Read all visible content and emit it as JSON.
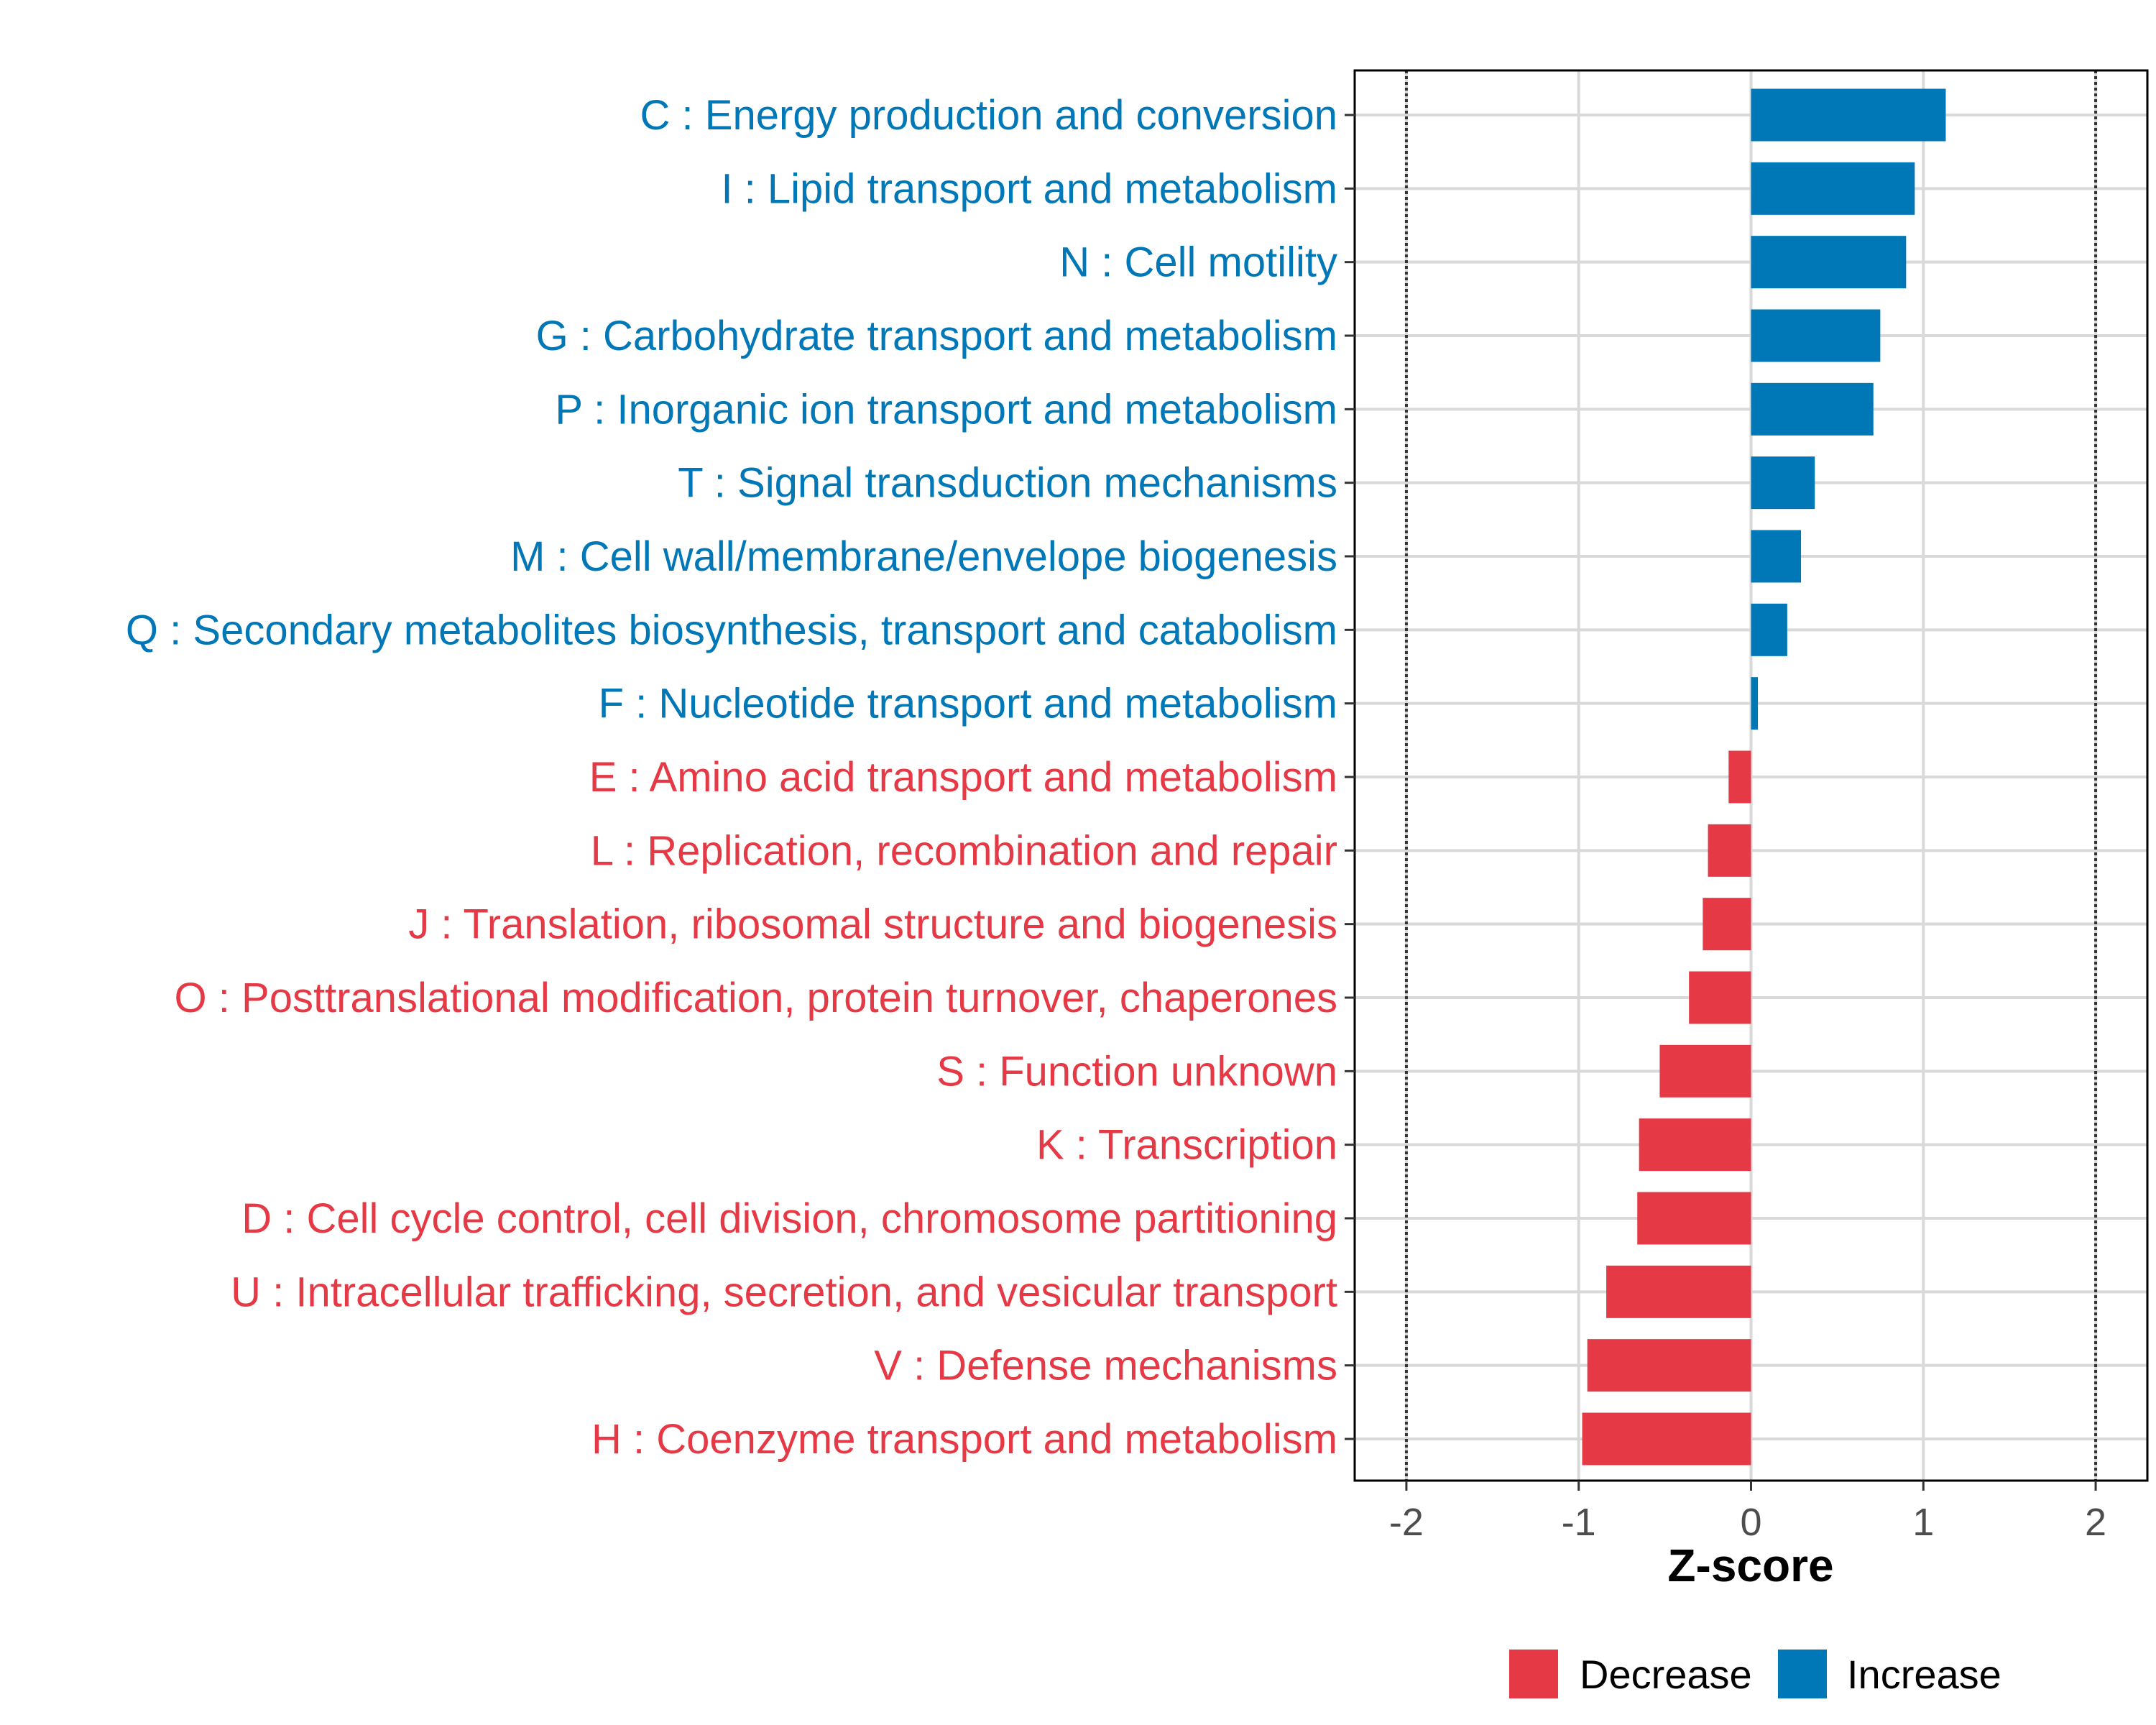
{
  "chart_data": {
    "type": "bar",
    "orientation": "horizontal",
    "xlabel": "Z-score",
    "ylabel": "",
    "xlim": [
      -2.3,
      2.3
    ],
    "x_ticks": [
      "-2",
      "-1",
      "0",
      "1",
      "2"
    ],
    "reference_lines": [
      -2,
      2
    ],
    "grid": true,
    "legend": [
      {
        "name": "Decrease",
        "color": "#E63946"
      },
      {
        "name": "Increase",
        "color": "#0077B6"
      }
    ],
    "categories": [
      "C : Energy production and conversion",
      "I : Lipid transport and metabolism",
      "N : Cell motility",
      "G : Carbohydrate transport and metabolism",
      "P : Inorganic ion transport and metabolism",
      "T : Signal transduction mechanisms",
      "M : Cell wall/membrane/envelope biogenesis",
      "Q : Secondary metabolites biosynthesis, transport and catabolism",
      "F : Nucleotide transport and metabolism",
      "E : Amino acid transport and metabolism",
      "L : Replication, recombination and repair",
      "J : Translation, ribosomal structure and biogenesis",
      "O : Posttranslational modification, protein turnover, chaperones",
      "S : Function unknown",
      "K : Transcription",
      "D : Cell cycle control, cell division, chromosome partitioning",
      "U : Intracellular trafficking, secretion, and vesicular transport",
      "V : Defense mechanisms",
      "H : Coenzyme transport and metabolism"
    ],
    "values": [
      1.13,
      0.95,
      0.9,
      0.75,
      0.71,
      0.37,
      0.29,
      0.21,
      0.04,
      -0.13,
      -0.25,
      -0.28,
      -0.36,
      -0.53,
      -0.65,
      -0.66,
      -0.84,
      -0.95,
      -0.98
    ]
  }
}
